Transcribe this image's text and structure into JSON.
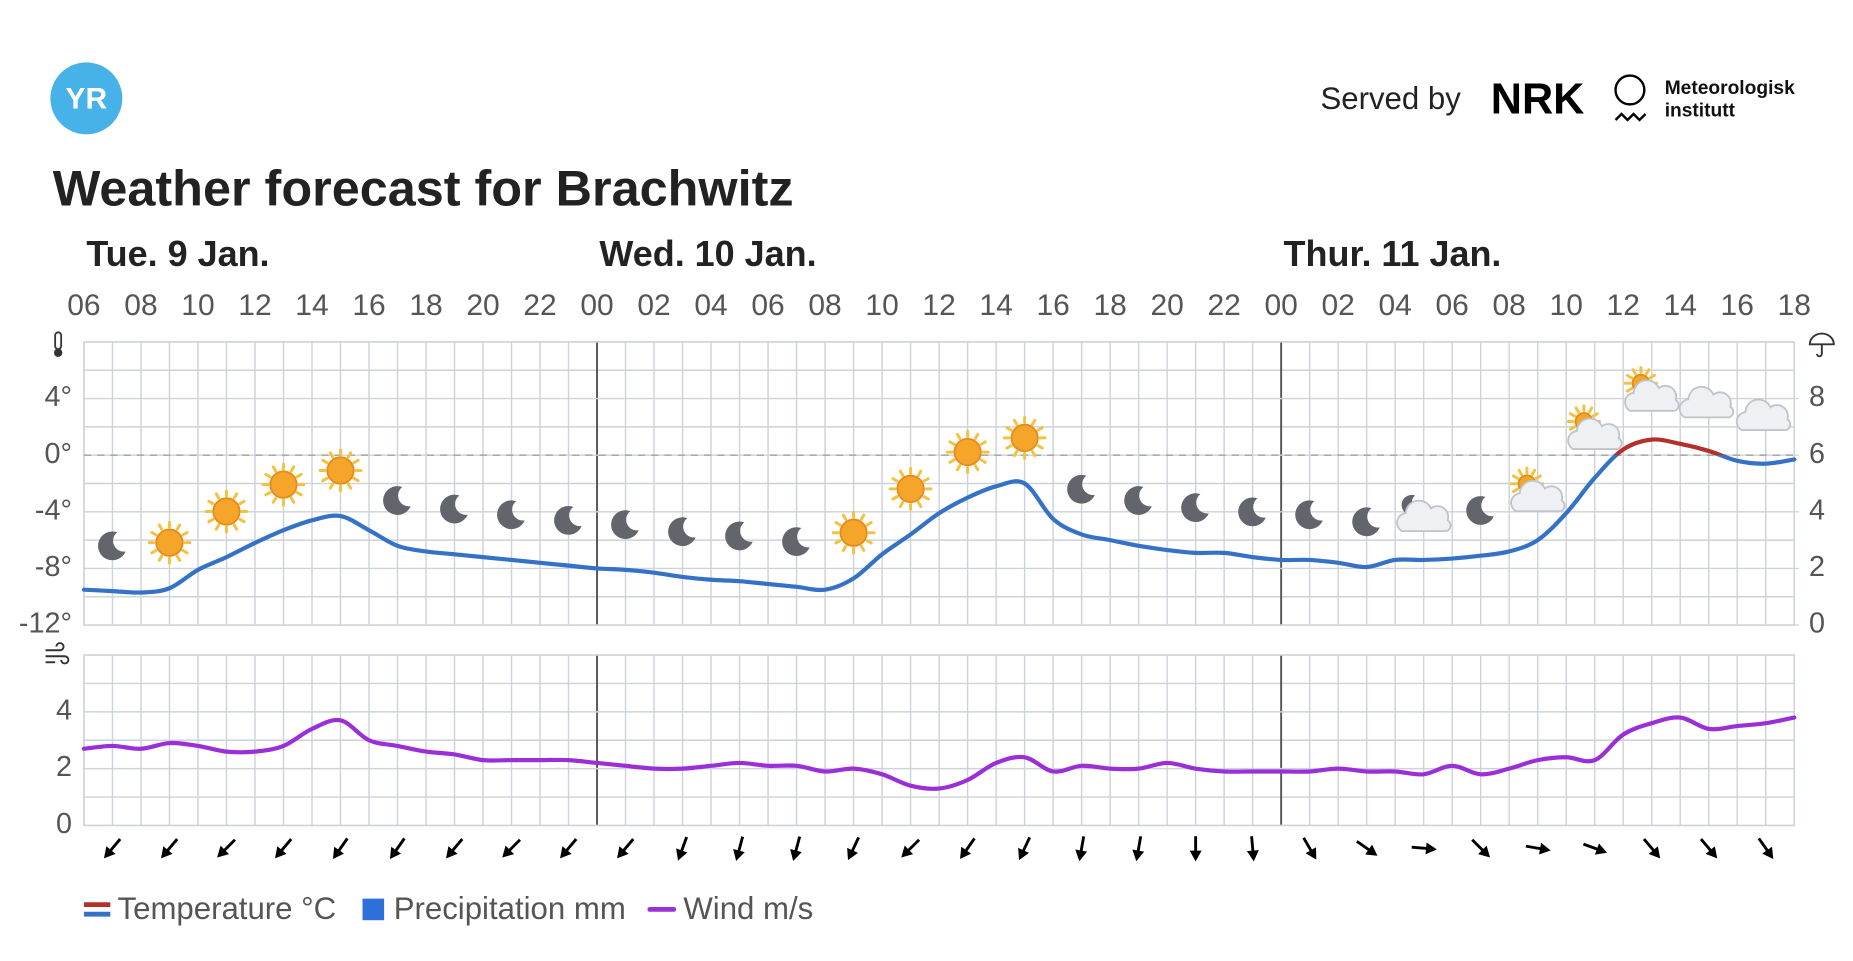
{
  "header": {
    "logo": "YR",
    "served_by": "Served by",
    "nrk": "NRK",
    "met": [
      "Meteorologisk",
      "institutt"
    ]
  },
  "chart_data": {
    "type": "line",
    "title": "Weather forecast for Brachwitz",
    "days": [
      "Tue. 9 Jan.",
      "Wed. 10 Jan.",
      "Thur. 11 Jan."
    ],
    "categories": [
      "06",
      null,
      "08",
      null,
      "10",
      null,
      "12",
      null,
      "14",
      null,
      "16",
      null,
      "18",
      null,
      "20",
      null,
      "22",
      null,
      "00",
      null,
      "02",
      null,
      "04",
      null,
      "06",
      null,
      "08",
      null,
      "10",
      null,
      "12",
      null,
      "14",
      null,
      "16",
      null,
      "18",
      null,
      "20",
      null,
      "22",
      null,
      "00",
      null,
      "02",
      null,
      "04",
      null,
      "06",
      null,
      "08",
      null,
      "10",
      null,
      "12",
      null,
      "14",
      null,
      "16",
      null,
      "18"
    ],
    "ylim": [
      -12,
      8
    ],
    "yticks": [
      {
        "value": -12,
        "label": "-12°"
      },
      {
        "value": -8,
        "label": "-8°"
      },
      {
        "value": -4,
        "label": "-4°"
      },
      {
        "value": 0,
        "label": "0°"
      },
      {
        "value": 4,
        "label": "4°"
      }
    ],
    "y2lim": [
      0,
      10
    ],
    "y2ticks": [
      0,
      2,
      4,
      6,
      8
    ],
    "wind_ylim": [
      0,
      6
    ],
    "wind_yticks": [
      0,
      2,
      4
    ],
    "grid": true,
    "zero_line": true,
    "series": [
      {
        "name": "Temperature °C",
        "color": "#3572c6",
        "warm_color": "#b3302b",
        "values": [
          -9.5,
          -9.6,
          -9.7,
          -9.4,
          -8.1,
          -7.2,
          -6.2,
          -5.3,
          -4.6,
          -4.3,
          -5.3,
          -6.4,
          -6.8,
          -7.0,
          -7.2,
          -7.4,
          -7.6,
          -7.8,
          -8.0,
          -8.1,
          -8.3,
          -8.6,
          -8.8,
          -8.9,
          -9.1,
          -9.3,
          -9.5,
          -8.7,
          -7.0,
          -5.6,
          -4.1,
          -3.0,
          -2.2,
          -2.0,
          -4.5,
          -5.6,
          -6.0,
          -6.4,
          -6.7,
          -6.9,
          -6.9,
          -7.2,
          -7.4,
          -7.4,
          -7.6,
          -7.9,
          -7.4,
          -7.4,
          -7.3,
          -7.1,
          -6.8,
          -6.0,
          -4.1,
          -1.6,
          0.4,
          1.1,
          0.8,
          0.3,
          -0.4,
          -0.6,
          -0.3
        ]
      },
      {
        "name": "Precipitation mm",
        "color": "#2f6fd9",
        "axis": "y2"
      },
      {
        "name": "Wind m/s",
        "color": "#9b2fd7",
        "panel": "wind",
        "values": [
          2.7,
          2.8,
          2.7,
          2.9,
          2.8,
          2.6,
          2.6,
          2.8,
          3.4,
          3.7,
          3.0,
          2.8,
          2.6,
          2.5,
          2.3,
          2.3,
          2.3,
          2.3,
          2.2,
          2.1,
          2.0,
          2.0,
          2.1,
          2.2,
          2.1,
          2.1,
          1.9,
          2.0,
          1.8,
          1.4,
          1.3,
          1.6,
          2.2,
          2.4,
          1.9,
          2.1,
          2.0,
          2.0,
          2.2,
          2.0,
          1.9,
          1.9,
          1.9,
          1.9,
          2.0,
          1.9,
          1.9,
          1.8,
          2.1,
          1.8,
          2.0,
          2.3,
          2.4,
          2.3,
          3.2,
          3.6,
          3.8,
          3.4,
          3.5,
          3.6,
          3.8
        ]
      }
    ],
    "symbols": [
      null,
      "moon",
      null,
      "sun",
      null,
      "sun",
      null,
      "sun",
      null,
      "sun",
      null,
      "moon",
      null,
      "moon",
      null,
      "moon",
      null,
      "moon",
      null,
      "moon",
      null,
      "moon",
      null,
      "moon",
      null,
      "moon",
      null,
      "sun",
      null,
      "sun",
      null,
      "sun",
      null,
      "sun",
      null,
      "moon",
      null,
      "moon",
      null,
      "moon",
      null,
      "moon",
      null,
      "moon",
      null,
      "moon",
      null,
      "moon-cloud",
      null,
      "moon",
      null,
      "sun-cloud",
      null,
      "sun-cloud",
      null,
      "sun-cloud",
      null,
      "cloud",
      null,
      "cloud",
      null
    ],
    "wind_direction": [
      null,
      220,
      null,
      220,
      null,
      225,
      null,
      220,
      null,
      215,
      null,
      215,
      null,
      220,
      null,
      225,
      null,
      220,
      null,
      220,
      null,
      200,
      null,
      195,
      null,
      195,
      null,
      205,
      null,
      225,
      null,
      215,
      null,
      205,
      null,
      190,
      null,
      190,
      null,
      180,
      null,
      175,
      null,
      150,
      null,
      125,
      null,
      95,
      null,
      135,
      null,
      100,
      null,
      110,
      null,
      140,
      null,
      140,
      null,
      145,
      null
    ]
  }
}
